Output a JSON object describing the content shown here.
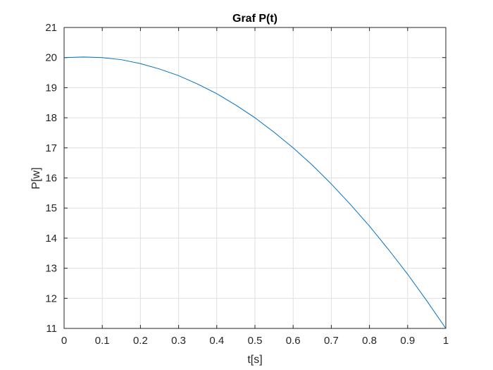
{
  "chart_data": {
    "type": "line",
    "title": "Graf P(t)",
    "xlabel": "t[s]",
    "ylabel": "P[w]",
    "xlim": [
      0,
      1
    ],
    "ylim": [
      11,
      21
    ],
    "grid": true,
    "x_ticks": [
      0,
      0.1,
      0.2,
      0.3,
      0.4,
      0.5,
      0.6,
      0.7,
      0.8,
      0.9,
      1
    ],
    "x_tick_labels": [
      "0",
      "0.1",
      "0.2",
      "0.3",
      "0.4",
      "0.5",
      "0.6",
      "0.7",
      "0.8",
      "0.9",
      "1"
    ],
    "y_ticks": [
      11,
      12,
      13,
      14,
      15,
      16,
      17,
      18,
      19,
      20,
      21
    ],
    "y_tick_labels": [
      "11",
      "12",
      "13",
      "14",
      "15",
      "16",
      "17",
      "18",
      "19",
      "20",
      "21"
    ],
    "series": [
      {
        "color": "#0072BD",
        "x": [
          0,
          0.05,
          0.1,
          0.15,
          0.2,
          0.25,
          0.3,
          0.35,
          0.4,
          0.45,
          0.5,
          0.55,
          0.6,
          0.65,
          0.7,
          0.75,
          0.8,
          0.85,
          0.9,
          0.95,
          1
        ],
        "y": [
          20.0,
          20.02,
          20.0,
          19.93,
          19.8,
          19.62,
          19.4,
          19.12,
          18.8,
          18.42,
          18.0,
          17.52,
          17.0,
          16.43,
          15.8,
          15.12,
          14.4,
          13.62,
          12.8,
          11.92,
          11.0
        ]
      }
    ]
  }
}
